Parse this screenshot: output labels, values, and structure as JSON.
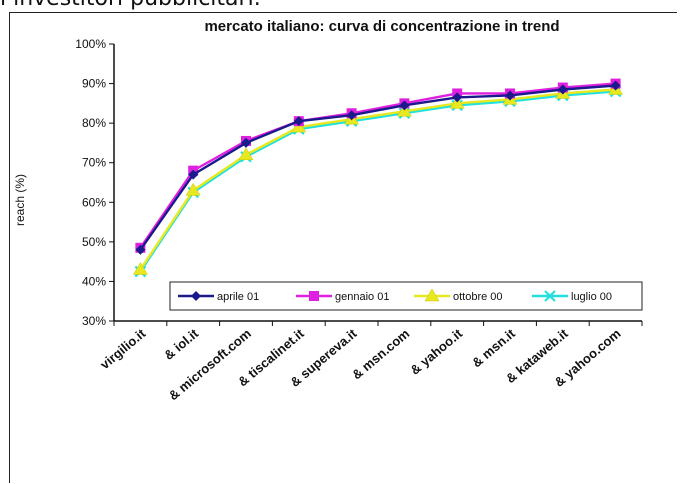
{
  "caption": "i investitori pubblicitari.",
  "chart_data": {
    "type": "line",
    "title": "mercato italiano: curva di concentrazione in trend",
    "xlabel": "",
    "ylabel": "reach (%)",
    "ylim": [
      30,
      100
    ],
    "yticks": [
      "30%",
      "40%",
      "50%",
      "60%",
      "70%",
      "80%",
      "90%",
      "100%"
    ],
    "grid": false,
    "legend_position": "bottom-right",
    "categories": [
      "virgilio.it",
      "& iol.it",
      "& microsoft.com",
      "& tiscalinet.it",
      "& supereva.it",
      "& msn.com",
      "& yahoo.it",
      "& msn.it",
      "& kataweb.it",
      "& yahoo.com"
    ],
    "series": [
      {
        "name": "aprile 01",
        "color": "#1a1a8c",
        "marker": "diamond",
        "values": [
          48,
          67,
          75,
          80.5,
          82,
          84.5,
          86.5,
          87,
          88.5,
          89.5
        ]
      },
      {
        "name": "gennaio 01",
        "color": "#e020e0",
        "marker": "square",
        "values": [
          48.5,
          68,
          75.5,
          80.5,
          82.5,
          85,
          87.5,
          87.5,
          89,
          90
        ]
      },
      {
        "name": "ottobre 00",
        "color": "#e8e820",
        "marker": "triangle",
        "values": [
          43,
          63,
          72,
          79,
          81,
          83,
          85,
          86,
          87.5,
          88.5
        ]
      },
      {
        "name": "luglio 00",
        "color": "#20e0e0",
        "marker": "x",
        "values": [
          42.5,
          62.5,
          71.5,
          78.5,
          80.5,
          82.5,
          84.5,
          85.5,
          87,
          88
        ]
      }
    ]
  }
}
